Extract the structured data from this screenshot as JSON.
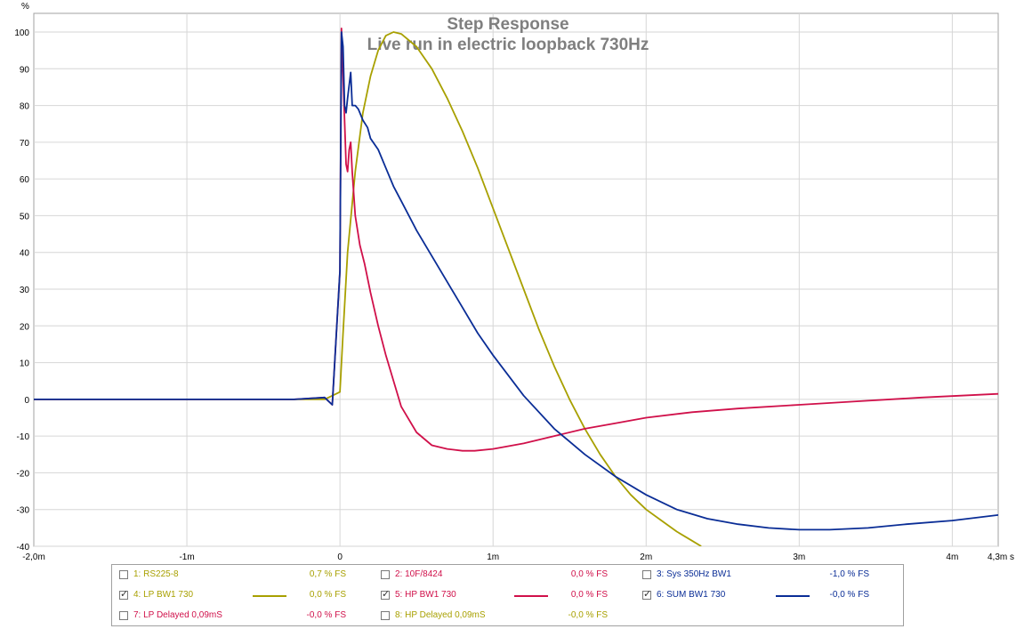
{
  "chart_data": {
    "type": "line",
    "title": "Step Response",
    "subtitle": "Live run in electric loopback 730Hz",
    "ylabel": "%",
    "xlabel": "s",
    "xlim": [
      -2.0,
      4.3
    ],
    "ylim": [
      -40,
      100
    ],
    "grid": true,
    "y_ticks": [
      100,
      90,
      80,
      70,
      60,
      50,
      40,
      30,
      20,
      10,
      0,
      -10,
      -20,
      -30,
      -40
    ],
    "x_tick_labels": [
      {
        "value": -2.0,
        "label": "-2,0m"
      },
      {
        "value": -1.0,
        "label": "-1m"
      },
      {
        "value": 0.0,
        "label": "0"
      },
      {
        "value": 1.0,
        "label": "1m"
      },
      {
        "value": 2.0,
        "label": "2m"
      },
      {
        "value": 3.0,
        "label": "3m"
      },
      {
        "value": 4.0,
        "label": "4m"
      },
      {
        "value": 4.3,
        "label": "4,3m s"
      }
    ],
    "series": [
      {
        "name": "LP BW1 730",
        "color": "#a8a000",
        "x": [
          -2.0,
          -0.1,
          0.0,
          0.02,
          0.05,
          0.1,
          0.15,
          0.2,
          0.25,
          0.3,
          0.35,
          0.4,
          0.5,
          0.6,
          0.7,
          0.8,
          0.9,
          1.0,
          1.1,
          1.2,
          1.3,
          1.4,
          1.5,
          1.6,
          1.7,
          1.8,
          1.9,
          2.0,
          2.1,
          2.2,
          2.3,
          2.36
        ],
        "values": [
          0,
          0,
          2,
          18,
          40,
          62,
          78,
          88,
          95,
          99,
          100,
          99.5,
          96,
          90,
          82,
          73,
          63,
          52,
          41,
          30,
          19,
          9,
          0,
          -8,
          -15,
          -21,
          -26,
          -30,
          -33,
          -36,
          -38.5,
          -40
        ]
      },
      {
        "name": "HP BW1 730",
        "color": "#d0104a",
        "x": [
          -2.0,
          -0.3,
          -0.1,
          -0.05,
          0.0,
          0.01,
          0.02,
          0.03,
          0.04,
          0.05,
          0.06,
          0.07,
          0.08,
          0.1,
          0.13,
          0.16,
          0.2,
          0.25,
          0.3,
          0.4,
          0.5,
          0.6,
          0.7,
          0.8,
          0.88,
          1.0,
          1.2,
          1.4,
          1.6,
          1.8,
          2.0,
          2.3,
          2.6,
          3.0,
          3.4,
          3.8,
          4.3
        ],
        "values": [
          0,
          0,
          0.5,
          -1.5,
          35,
          101,
          88,
          76,
          64,
          62,
          68,
          70,
          62,
          50,
          42,
          37,
          29,
          20,
          12,
          -2,
          -9,
          -12.5,
          -13.5,
          -14,
          -14,
          -13.5,
          -12,
          -10,
          -8,
          -6.5,
          -5,
          -3.5,
          -2.5,
          -1.5,
          -0.5,
          0.5,
          1.5
        ]
      },
      {
        "name": "SUM BW1 730",
        "color": "#0a2d96",
        "x": [
          -2.0,
          -0.3,
          -0.1,
          -0.05,
          0.0,
          0.01,
          0.02,
          0.03,
          0.04,
          0.05,
          0.07,
          0.08,
          0.1,
          0.12,
          0.15,
          0.18,
          0.2,
          0.25,
          0.3,
          0.35,
          0.4,
          0.5,
          0.6,
          0.7,
          0.8,
          0.9,
          1.0,
          1.2,
          1.4,
          1.6,
          1.8,
          2.0,
          2.2,
          2.4,
          2.6,
          2.8,
          3.0,
          3.2,
          3.45,
          3.7,
          4.0,
          4.3
        ],
        "values": [
          0,
          0,
          0.5,
          -1.5,
          35,
          100,
          96,
          80,
          78,
          82,
          89,
          80,
          80,
          79,
          76,
          74,
          71,
          68,
          63,
          58,
          54,
          46,
          39,
          32,
          25,
          18,
          12,
          1,
          -8,
          -15,
          -21,
          -26,
          -30,
          -32.5,
          -34,
          -35,
          -35.5,
          -35.5,
          -35,
          -34,
          -33,
          -31.5
        ]
      }
    ],
    "legend": [
      {
        "checked": false,
        "label": "1: RS225-8",
        "value": "0,7 % FS",
        "color": "#a8a000",
        "show_line": false
      },
      {
        "checked": false,
        "label": "2: 10F/8424",
        "value": "0,0 % FS",
        "color": "#d0104a",
        "show_line": false
      },
      {
        "checked": false,
        "label": "3: Sys 350Hz BW1",
        "value": "-1,0 % FS",
        "color": "#0a2d96",
        "show_line": false
      },
      {
        "checked": true,
        "label": "4: LP BW1 730",
        "value": "0,0 % FS",
        "color": "#a8a000",
        "show_line": true
      },
      {
        "checked": true,
        "label": "5: HP BW1 730",
        "value": "0,0 % FS",
        "color": "#d0104a",
        "show_line": true
      },
      {
        "checked": true,
        "label": "6: SUM BW1 730",
        "value": "-0,0 % FS",
        "color": "#0a2d96",
        "show_line": true
      },
      {
        "checked": false,
        "label": "7: LP Delayed 0,09mS",
        "value": "-0,0 % FS",
        "color": "#d0104a",
        "show_line": false
      },
      {
        "checked": false,
        "label": "8: HP Delayed 0,09mS",
        "value": "-0,0 % FS",
        "color": "#a8a000",
        "show_line": false
      }
    ]
  }
}
